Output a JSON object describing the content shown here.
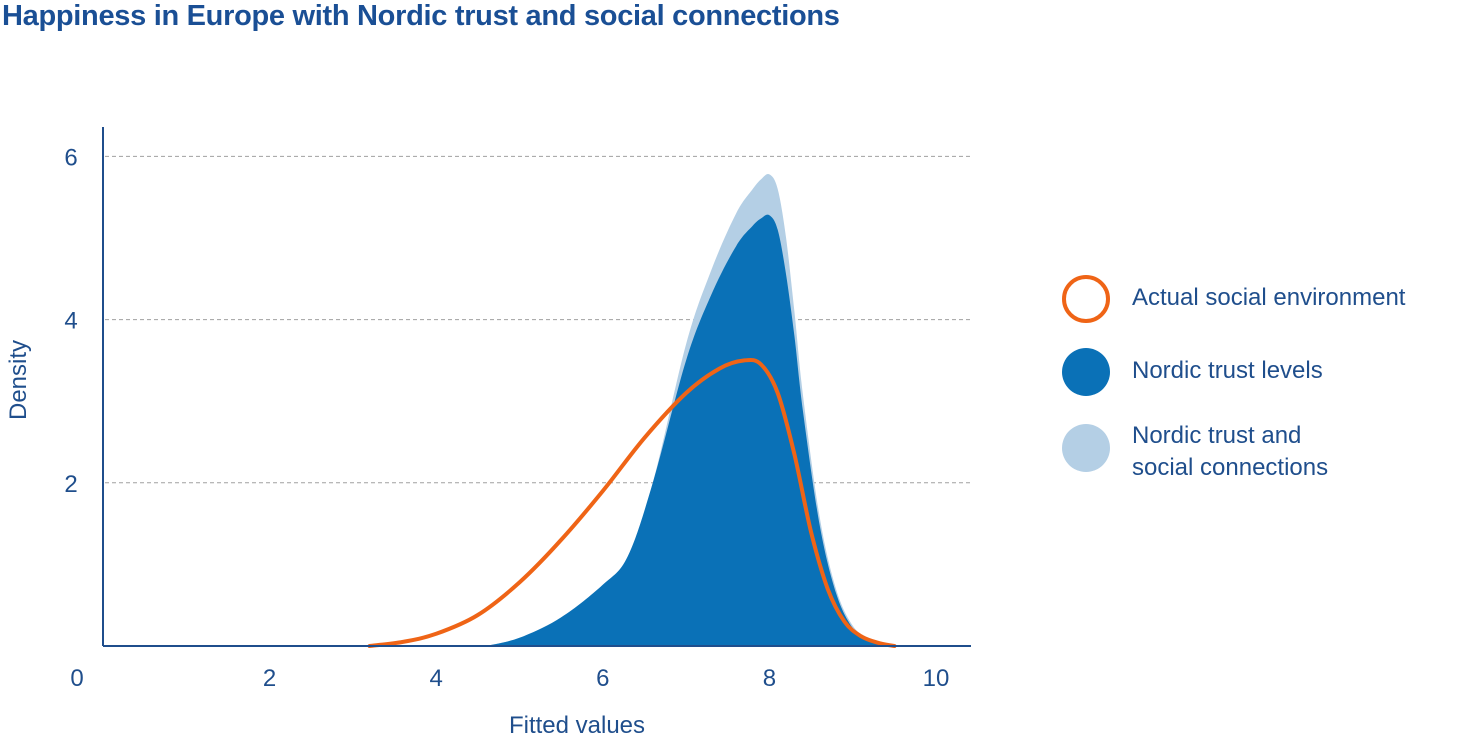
{
  "chart_data": {
    "type": "area",
    "title": "Happiness in Europe with Nordic trust and social connections",
    "xlabel": "Fitted values",
    "ylabel": "Density",
    "xlim": [
      0,
      10.5
    ],
    "ylim": [
      0,
      6.3
    ],
    "x_ticks": [
      "0",
      "2",
      "4",
      "6",
      "8",
      "10"
    ],
    "y_ticks": [
      "2",
      "4",
      "6"
    ],
    "grid": "horizontal dashed at 2, 4, 6",
    "legend_position": "right",
    "series": [
      {
        "name": "Nordic trust and\nsocial connections",
        "style": "filled area",
        "color": "#b4cfe5",
        "x": [
          4.6,
          5.0,
          5.5,
          6.0,
          6.3,
          6.6,
          7.0,
          7.3,
          7.6,
          7.8,
          7.9,
          8.0,
          8.1,
          8.2,
          8.3,
          8.4,
          8.6,
          8.8,
          9.0,
          9.2,
          9.4,
          9.55
        ],
        "y": [
          0,
          0.1,
          0.35,
          0.75,
          1.1,
          2.0,
          3.7,
          4.6,
          5.3,
          5.6,
          5.72,
          5.78,
          5.6,
          5.0,
          4.1,
          3.1,
          1.6,
          0.7,
          0.25,
          0.08,
          0.02,
          0
        ]
      },
      {
        "name": "Nordic trust levels",
        "style": "filled area",
        "color": "#0a71b7",
        "x": [
          4.6,
          5.0,
          5.5,
          6.0,
          6.3,
          6.6,
          7.0,
          7.3,
          7.6,
          7.8,
          7.9,
          8.0,
          8.1,
          8.2,
          8.3,
          8.4,
          8.6,
          8.8,
          9.0,
          9.2,
          9.4,
          9.55
        ],
        "y": [
          0,
          0.1,
          0.35,
          0.75,
          1.1,
          2.0,
          3.5,
          4.3,
          4.9,
          5.15,
          5.24,
          5.28,
          5.1,
          4.55,
          3.8,
          2.9,
          1.5,
          0.65,
          0.22,
          0.07,
          0.02,
          0
        ]
      },
      {
        "name": "Actual social environment",
        "style": "line",
        "color": "#ef6416",
        "x": [
          3.2,
          3.6,
          4.0,
          4.5,
          5.0,
          5.5,
          6.0,
          6.5,
          7.0,
          7.4,
          7.7,
          7.9,
          8.1,
          8.3,
          8.5,
          8.7,
          8.9,
          9.1,
          9.3,
          9.5
        ],
        "y": [
          0,
          0.05,
          0.15,
          0.38,
          0.78,
          1.3,
          1.9,
          2.55,
          3.1,
          3.4,
          3.5,
          3.45,
          3.1,
          2.35,
          1.4,
          0.7,
          0.3,
          0.12,
          0.04,
          0
        ]
      }
    ]
  },
  "legend": {
    "items": [
      {
        "label": "Actual social environment",
        "type": "ring",
        "color": "#ef6416"
      },
      {
        "label": "Nordic trust levels",
        "type": "filled",
        "color": "#0a71b7"
      },
      {
        "label": "Nordic trust and\nsocial connections",
        "type": "filled",
        "color": "#b4cfe5"
      }
    ]
  },
  "colors": {
    "text": "#1f4e8c",
    "title": "#1a4f95",
    "axis": "#1f4e8c",
    "grid": "#a0a0a0"
  }
}
